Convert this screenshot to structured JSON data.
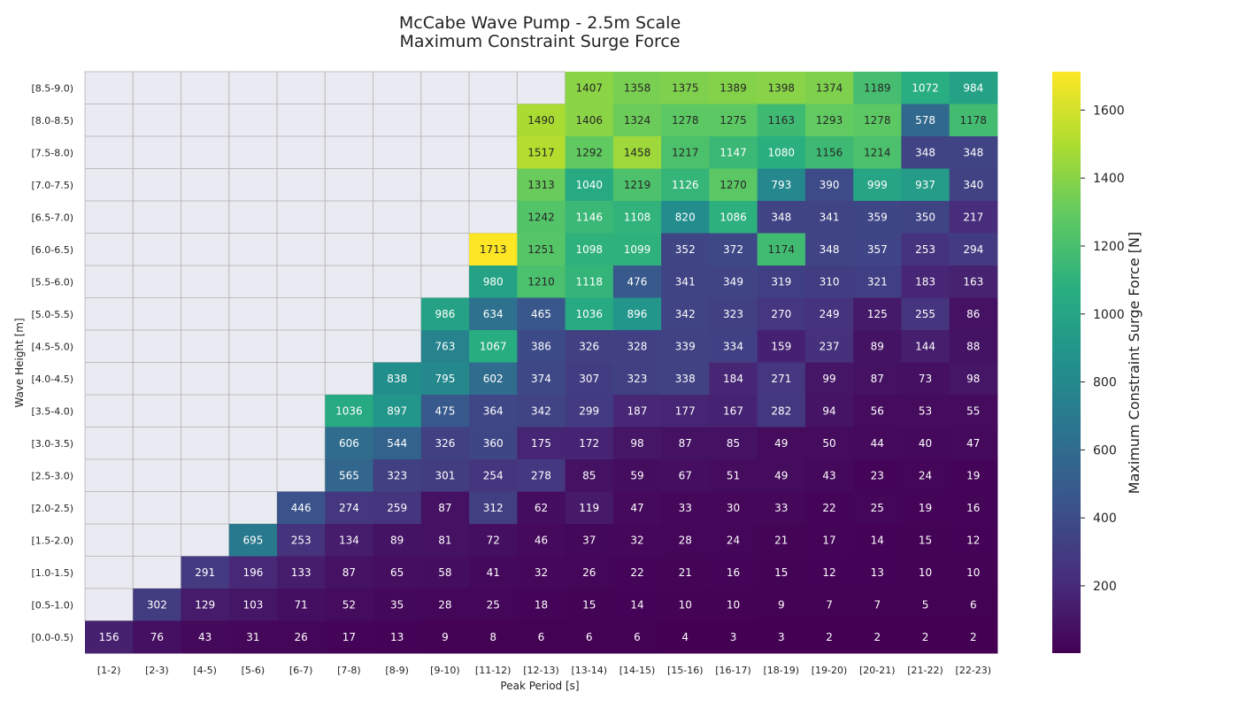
{
  "chart_data": {
    "type": "heatmap",
    "title": "McCabe Wave Pump - 2.5m Scale",
    "subtitle": "Maximum Constraint Surge Force",
    "xlabel": "Peak Period [s]",
    "ylabel": "Wave Height [m]",
    "colorbar_label": "Maximum Constraint Surge Force [N]",
    "colorbar_ticks": [
      200,
      400,
      600,
      800,
      1000,
      1200,
      1400,
      1600
    ],
    "colorbar_range": [
      2,
      1713
    ],
    "colormap": "viridis",
    "empty_cell_color": "#eaeaf2",
    "x_categories": [
      "[1-2)",
      "[2-3)",
      "[4-5)",
      "[5-6)",
      "[6-7)",
      "[7-8)",
      "[8-9)",
      "[9-10)",
      "[11-12)",
      "[12-13)",
      "[13-14)",
      "[14-15)",
      "[15-16)",
      "[16-17)",
      "[18-19)",
      "[19-20)",
      "[20-21)",
      "[21-22)",
      "[22-23)"
    ],
    "y_categories": [
      "[8.5-9.0)",
      "[8.0-8.5)",
      "[7.5-8.0)",
      "[7.0-7.5)",
      "[6.5-7.0)",
      "[6.0-6.5)",
      "[5.5-6.0)",
      "[5.0-5.5)",
      "[4.5-5.0)",
      "[4.0-4.5)",
      "[3.5-4.0)",
      "[3.0-3.5)",
      "[2.5-3.0)",
      "[2.0-2.5)",
      "[1.5-2.0)",
      "[1.0-1.5)",
      "[0.5-1.0)",
      "[0.0-0.5)"
    ],
    "values": [
      [
        null,
        null,
        null,
        null,
        null,
        null,
        null,
        null,
        null,
        null,
        1407,
        1358,
        1375,
        1389,
        1398,
        1374,
        1189,
        1072,
        984
      ],
      [
        null,
        null,
        null,
        null,
        null,
        null,
        null,
        null,
        null,
        1490,
        1406,
        1324,
        1278,
        1275,
        1163,
        1293,
        1278,
        578,
        1178
      ],
      [
        null,
        null,
        null,
        null,
        null,
        null,
        null,
        null,
        null,
        1517,
        1292,
        1458,
        1217,
        1147,
        1080,
        1156,
        1214,
        348,
        348
      ],
      [
        null,
        null,
        null,
        null,
        null,
        null,
        null,
        null,
        null,
        1313,
        1040,
        1219,
        1126,
        1270,
        793,
        390,
        999,
        937,
        340
      ],
      [
        null,
        null,
        null,
        null,
        null,
        null,
        null,
        null,
        null,
        1242,
        1146,
        1108,
        820,
        1086,
        348,
        341,
        359,
        350,
        217
      ],
      [
        null,
        null,
        null,
        null,
        null,
        null,
        null,
        null,
        1713,
        1251,
        1098,
        1099,
        352,
        372,
        1174,
        348,
        357,
        253,
        294
      ],
      [
        null,
        null,
        null,
        null,
        null,
        null,
        null,
        null,
        980,
        1210,
        1118,
        476,
        341,
        349,
        319,
        310,
        321,
        183,
        163
      ],
      [
        null,
        null,
        null,
        null,
        null,
        null,
        null,
        986,
        634,
        465,
        1036,
        896,
        342,
        323,
        270,
        249,
        125,
        255,
        86
      ],
      [
        null,
        null,
        null,
        null,
        null,
        null,
        null,
        763,
        1067,
        386,
        326,
        328,
        339,
        334,
        159,
        237,
        89,
        144,
        88
      ],
      [
        null,
        null,
        null,
        null,
        null,
        null,
        838,
        795,
        602,
        374,
        307,
        323,
        338,
        184,
        271,
        99,
        87,
        73,
        98
      ],
      [
        null,
        null,
        null,
        null,
        null,
        1036,
        897,
        475,
        364,
        342,
        299,
        187,
        177,
        167,
        282,
        94,
        56,
        53,
        55
      ],
      [
        null,
        null,
        null,
        null,
        null,
        606,
        544,
        326,
        360,
        175,
        172,
        98,
        87,
        85,
        49,
        50,
        44,
        40,
        47
      ],
      [
        null,
        null,
        null,
        null,
        null,
        565,
        323,
        301,
        254,
        278,
        85,
        59,
        67,
        51,
        49,
        43,
        23,
        24,
        19
      ],
      [
        null,
        null,
        null,
        null,
        446,
        274,
        259,
        87,
        312,
        62,
        119,
        47,
        33,
        30,
        33,
        22,
        25,
        19,
        16
      ],
      [
        null,
        null,
        null,
        695,
        253,
        134,
        89,
        81,
        72,
        46,
        37,
        32,
        28,
        24,
        21,
        17,
        14,
        15,
        12
      ],
      [
        null,
        null,
        291,
        196,
        133,
        87,
        65,
        58,
        41,
        32,
        26,
        22,
        21,
        16,
        15,
        12,
        13,
        10,
        10
      ],
      [
        null,
        302,
        129,
        103,
        71,
        52,
        35,
        28,
        25,
        18,
        15,
        14,
        10,
        10,
        9,
        7,
        7,
        5,
        6
      ],
      [
        156,
        76,
        43,
        31,
        26,
        17,
        13,
        9,
        8,
        6,
        6,
        6,
        4,
        3,
        3,
        2,
        2,
        2,
        2
      ]
    ]
  }
}
